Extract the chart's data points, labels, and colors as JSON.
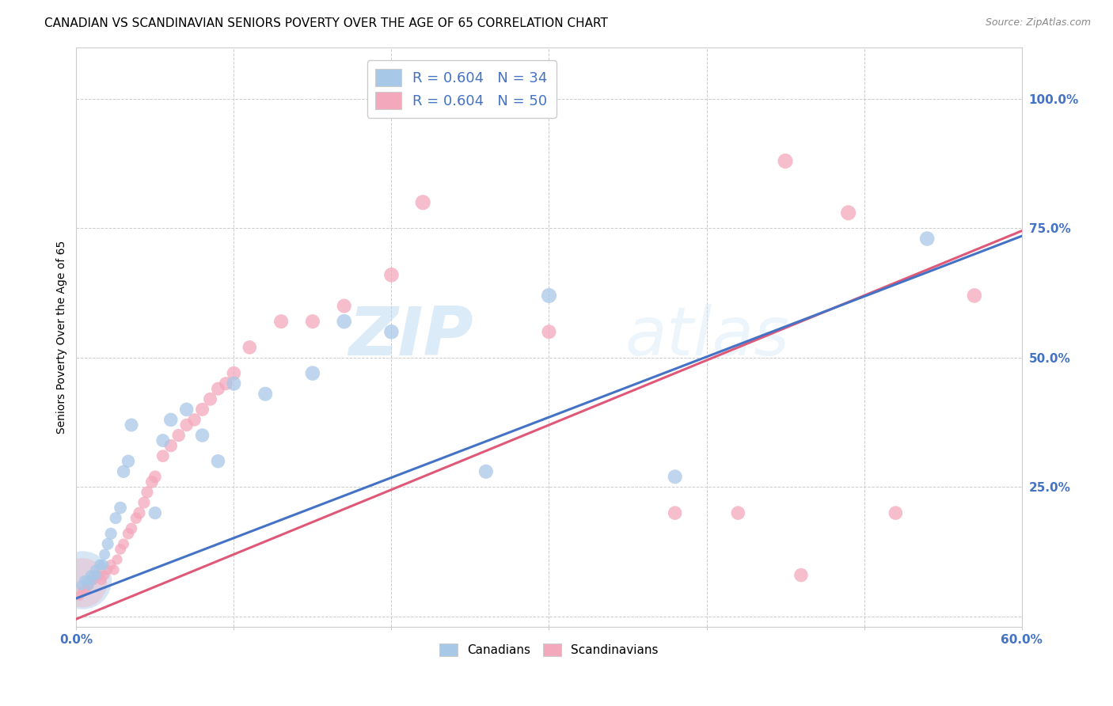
{
  "title": "CANADIAN VS SCANDINAVIAN SENIORS POVERTY OVER THE AGE OF 65 CORRELATION CHART",
  "source": "Source: ZipAtlas.com",
  "ylabel": "Seniors Poverty Over the Age of 65",
  "watermark_part1": "ZIP",
  "watermark_part2": "atlas",
  "xlim": [
    0.0,
    0.6
  ],
  "ylim": [
    -0.02,
    1.1
  ],
  "xtick_positions": [
    0.0,
    0.1,
    0.2,
    0.3,
    0.4,
    0.5,
    0.6
  ],
  "xticklabels": [
    "0.0%",
    "",
    "",
    "",
    "",
    "",
    "60.0%"
  ],
  "ytick_positions": [
    0.0,
    0.25,
    0.5,
    0.75,
    1.0
  ],
  "yticklabels": [
    "",
    "25.0%",
    "50.0%",
    "75.0%",
    "100.0%"
  ],
  "legend_line1": "R = 0.604   N = 34",
  "legend_line2": "R = 0.604   N = 50",
  "canadian_color": "#a8c8e8",
  "scandinavian_color": "#f4a8bc",
  "canadian_line_color": "#4472c4",
  "scandinavian_line_color": "#e05878",
  "canadian_data_x": [
    0.003,
    0.005,
    0.007,
    0.008,
    0.009,
    0.01,
    0.011,
    0.012,
    0.013,
    0.015,
    0.017,
    0.018,
    0.02,
    0.022,
    0.025,
    0.028,
    0.03,
    0.033,
    0.035,
    0.05,
    0.055,
    0.06,
    0.07,
    0.08,
    0.09,
    0.1,
    0.12,
    0.15,
    0.17,
    0.2,
    0.26,
    0.3,
    0.38,
    0.54
  ],
  "canadian_data_y": [
    0.06,
    0.07,
    0.07,
    0.06,
    0.08,
    0.07,
    0.08,
    0.09,
    0.08,
    0.1,
    0.1,
    0.12,
    0.14,
    0.16,
    0.19,
    0.21,
    0.28,
    0.3,
    0.37,
    0.2,
    0.34,
    0.38,
    0.4,
    0.35,
    0.3,
    0.45,
    0.43,
    0.47,
    0.57,
    0.55,
    0.28,
    0.62,
    0.27,
    0.73
  ],
  "canadian_sizes": [
    80,
    80,
    80,
    80,
    80,
    80,
    80,
    80,
    80,
    100,
    100,
    100,
    120,
    120,
    120,
    130,
    140,
    140,
    150,
    140,
    150,
    160,
    160,
    160,
    160,
    170,
    170,
    180,
    180,
    180,
    170,
    190,
    170,
    180
  ],
  "scandinavian_data_x": [
    0.002,
    0.004,
    0.006,
    0.007,
    0.008,
    0.01,
    0.011,
    0.013,
    0.015,
    0.016,
    0.018,
    0.02,
    0.022,
    0.024,
    0.026,
    0.028,
    0.03,
    0.033,
    0.035,
    0.038,
    0.04,
    0.043,
    0.045,
    0.048,
    0.05,
    0.055,
    0.06,
    0.065,
    0.07,
    0.075,
    0.08,
    0.085,
    0.09,
    0.095,
    0.1,
    0.11,
    0.13,
    0.15,
    0.17,
    0.2,
    0.22,
    0.25,
    0.3,
    0.38,
    0.42,
    0.45,
    0.46,
    0.49,
    0.52,
    0.57
  ],
  "scandinavian_data_y": [
    0.04,
    0.05,
    0.05,
    0.06,
    0.06,
    0.07,
    0.07,
    0.08,
    0.08,
    0.07,
    0.08,
    0.09,
    0.1,
    0.09,
    0.11,
    0.13,
    0.14,
    0.16,
    0.17,
    0.19,
    0.2,
    0.22,
    0.24,
    0.26,
    0.27,
    0.31,
    0.33,
    0.35,
    0.37,
    0.38,
    0.4,
    0.42,
    0.44,
    0.45,
    0.47,
    0.52,
    0.57,
    0.57,
    0.6,
    0.66,
    0.8,
    1.02,
    0.55,
    0.2,
    0.2,
    0.88,
    0.08,
    0.78,
    0.2,
    0.62
  ],
  "scandinavian_sizes": [
    80,
    80,
    80,
    80,
    80,
    80,
    80,
    80,
    80,
    80,
    80,
    80,
    90,
    90,
    90,
    100,
    100,
    110,
    110,
    110,
    120,
    120,
    120,
    130,
    130,
    130,
    140,
    140,
    140,
    140,
    150,
    150,
    150,
    150,
    160,
    160,
    170,
    170,
    170,
    180,
    190,
    200,
    170,
    160,
    160,
    190,
    160,
    190,
    160,
    180
  ],
  "title_fontsize": 11,
  "axis_label_fontsize": 10,
  "tick_fontsize": 11,
  "legend_fontsize": 13,
  "background_color": "#ffffff",
  "grid_color": "#cccccc",
  "canadian_line_x": [
    0.0,
    0.6
  ],
  "canadian_line_y": [
    0.035,
    0.735
  ],
  "scandinavian_line_x": [
    0.0,
    0.6
  ],
  "scandinavian_line_y": [
    -0.005,
    0.745
  ]
}
